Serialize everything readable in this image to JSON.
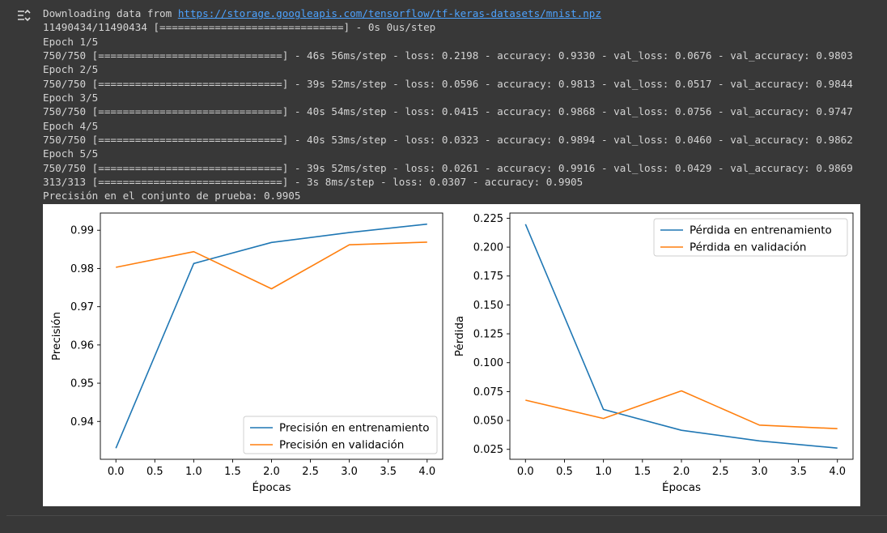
{
  "output": {
    "download_prefix": "Downloading data from ",
    "download_url": "https://storage.googleapis.com/tensorflow/tf-keras-datasets/mnist.npz",
    "lines": [
      "11490434/11490434 [==============================] - 0s 0us/step",
      "Epoch 1/5",
      "750/750 [==============================] - 46s 56ms/step - loss: 0.2198 - accuracy: 0.9330 - val_loss: 0.0676 - val_accuracy: 0.9803",
      "Epoch 2/5",
      "750/750 [==============================] - 39s 52ms/step - loss: 0.0596 - accuracy: 0.9813 - val_loss: 0.0517 - val_accuracy: 0.9844",
      "Epoch 3/5",
      "750/750 [==============================] - 40s 54ms/step - loss: 0.0415 - accuracy: 0.9868 - val_loss: 0.0756 - val_accuracy: 0.9747",
      "Epoch 4/5",
      "750/750 [==============================] - 40s 53ms/step - loss: 0.0323 - accuracy: 0.9894 - val_loss: 0.0460 - val_accuracy: 0.9862",
      "Epoch 5/5",
      "750/750 [==============================] - 39s 52ms/step - loss: 0.0261 - accuracy: 0.9916 - val_loss: 0.0429 - val_accuracy: 0.9869",
      "313/313 [==============================] - 3s 8ms/step - loss: 0.0307 - accuracy: 0.9905",
      "Precisión en el conjunto de prueba: 0.9905"
    ]
  },
  "icons": {
    "output_toggle": "output-collapse-icon"
  },
  "colors": {
    "series_train": "#1f77b4",
    "series_val": "#ff7f0e",
    "link": "#4da3ff"
  },
  "chart_data": [
    {
      "type": "line",
      "xlabel": "Épocas",
      "ylabel": "Precisión",
      "x": [
        0,
        1,
        2,
        3,
        4
      ],
      "xticks": [
        0.0,
        0.5,
        1.0,
        1.5,
        2.0,
        2.5,
        3.0,
        3.5,
        4.0
      ],
      "xtick_labels": [
        "0.0",
        "0.5",
        "1.0",
        "1.5",
        "2.0",
        "2.5",
        "3.0",
        "3.5",
        "4.0"
      ],
      "yticks": [
        0.94,
        0.95,
        0.96,
        0.97,
        0.98,
        0.99
      ],
      "ytick_labels": [
        "0.94",
        "0.95",
        "0.96",
        "0.97",
        "0.98",
        "0.99"
      ],
      "xlim": [
        -0.2,
        4.2
      ],
      "ylim": [
        0.9301,
        0.9945
      ],
      "legend": "lower-right",
      "series": [
        {
          "name": "Precisión en entrenamiento",
          "color": "#1f77b4",
          "values": [
            0.933,
            0.9813,
            0.9868,
            0.9894,
            0.9916
          ]
        },
        {
          "name": "Precisión en validación",
          "color": "#ff7f0e",
          "values": [
            0.9803,
            0.9844,
            0.9747,
            0.9862,
            0.9869
          ]
        }
      ]
    },
    {
      "type": "line",
      "xlabel": "Épocas",
      "ylabel": "Pérdida",
      "x": [
        0,
        1,
        2,
        3,
        4
      ],
      "xticks": [
        0.0,
        0.5,
        1.0,
        1.5,
        2.0,
        2.5,
        3.0,
        3.5,
        4.0
      ],
      "xtick_labels": [
        "0.0",
        "0.5",
        "1.0",
        "1.5",
        "2.0",
        "2.5",
        "3.0",
        "3.5",
        "4.0"
      ],
      "yticks": [
        0.025,
        0.05,
        0.075,
        0.1,
        0.125,
        0.15,
        0.175,
        0.2,
        0.225
      ],
      "ytick_labels": [
        "0.025",
        "0.050",
        "0.075",
        "0.100",
        "0.125",
        "0.150",
        "0.175",
        "0.200",
        "0.225"
      ],
      "xlim": [
        -0.2,
        4.2
      ],
      "ylim": [
        0.0164,
        0.2295
      ],
      "legend": "upper-right",
      "series": [
        {
          "name": "Pérdida en entrenamiento",
          "color": "#1f77b4",
          "values": [
            0.2198,
            0.0596,
            0.0415,
            0.0323,
            0.0261
          ]
        },
        {
          "name": "Pérdida en validación",
          "color": "#ff7f0e",
          "values": [
            0.0676,
            0.0517,
            0.0756,
            0.046,
            0.0429
          ]
        }
      ]
    }
  ]
}
